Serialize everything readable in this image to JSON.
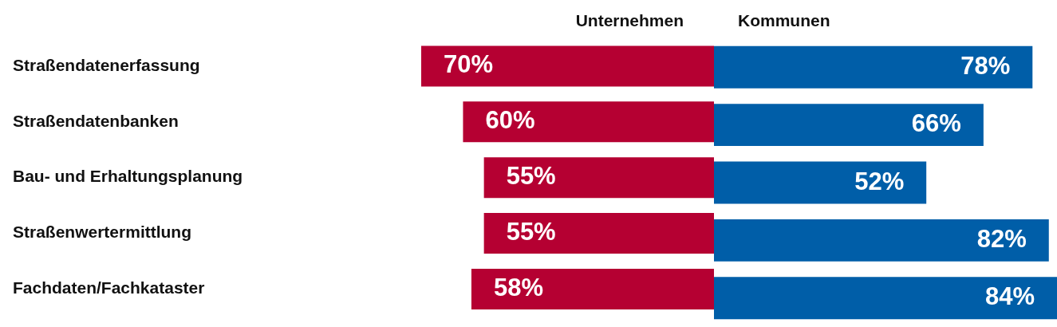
{
  "chart_data": [
    {
      "type": "bar",
      "orientation": "horizontal",
      "categories": [
        "Straßendatenerfassung",
        "Straßendatenbanken",
        "Bau- und Erhaltungsplanung",
        "Straßenwertermittlung",
        "Fachdaten/Fachkataster"
      ],
      "xlim": [
        70,
        0
      ],
      "tick_labels": "y",
      "series": [
        {
          "name": "Unternehmen",
          "color": "#b50032",
          "values": [
            70,
            60,
            55,
            55,
            58
          ],
          "value_labels": [
            "70%",
            "60%",
            "55%",
            "55%",
            "58%"
          ]
        }
      ]
    },
    {
      "type": "bar",
      "orientation": "horizontal",
      "categories": [
        null,
        null,
        null,
        null,
        null
      ],
      "xlim": [
        0,
        84
      ],
      "tick_labels": false,
      "series": [
        {
          "name": "Kommunen",
          "color": "#005ea8",
          "values": [
            78,
            66,
            52,
            82,
            84
          ],
          "value_labels": [
            "78%",
            "66%",
            "52%",
            "82%",
            "84%"
          ]
        }
      ]
    }
  ]
}
